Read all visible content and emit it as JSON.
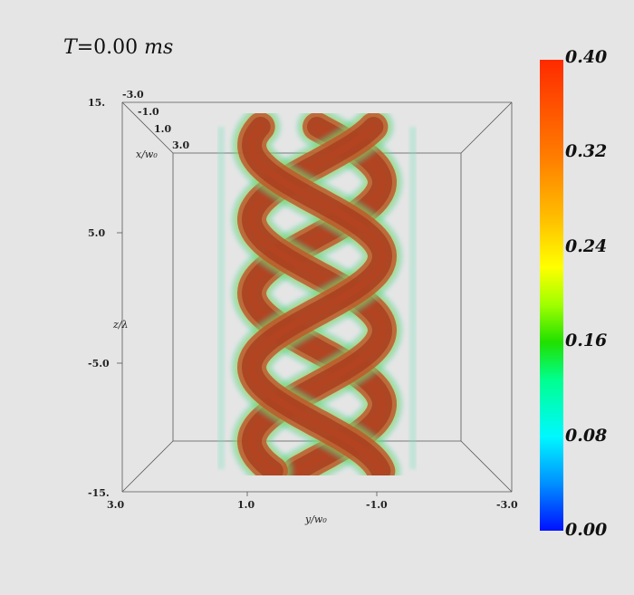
{
  "title": {
    "var": "T",
    "eq": "=",
    "value": "0.00",
    "unit": "ms"
  },
  "axes": {
    "x_label": "x/w₀",
    "y_label": "y/w₀",
    "z_label": "z/λ",
    "x_ticks": [
      "-3.0",
      "-1.0",
      "1.0",
      "3.0"
    ],
    "y_ticks": [
      "3.0",
      "1.0",
      "-1.0",
      "-3.0"
    ],
    "z_ticks": [
      "15.",
      "5.0",
      "-5.0",
      "-15."
    ]
  },
  "colorbar": {
    "ticks": [
      "0.40",
      "0.32",
      "0.24",
      "0.16",
      "0.08",
      "0.00"
    ],
    "colors": [
      "#0010ff",
      "#00f8ff",
      "#20e000",
      "#ffff00",
      "#ff7a00",
      "#ff2a00"
    ]
  },
  "chart_data": {
    "type": "heatmap",
    "title": "T = 0.00 ms",
    "xlabel": "y/w₀",
    "ylabel": "z/λ",
    "zlabel": "x/w₀",
    "xlim": [
      3.0,
      -3.0
    ],
    "ylim": [
      -15,
      15
    ],
    "zlim": [
      -3.0,
      3.0
    ],
    "colorbar_range": [
      0.0,
      0.4
    ],
    "series": [
      {
        "name": "",
        "values": [
          0.4
        ]
      },
      {
        "name": "",
        "values": [
          0.4
        ]
      },
      {
        "name": "",
        "values": [
          0.4
        ]
      }
    ]
  }
}
